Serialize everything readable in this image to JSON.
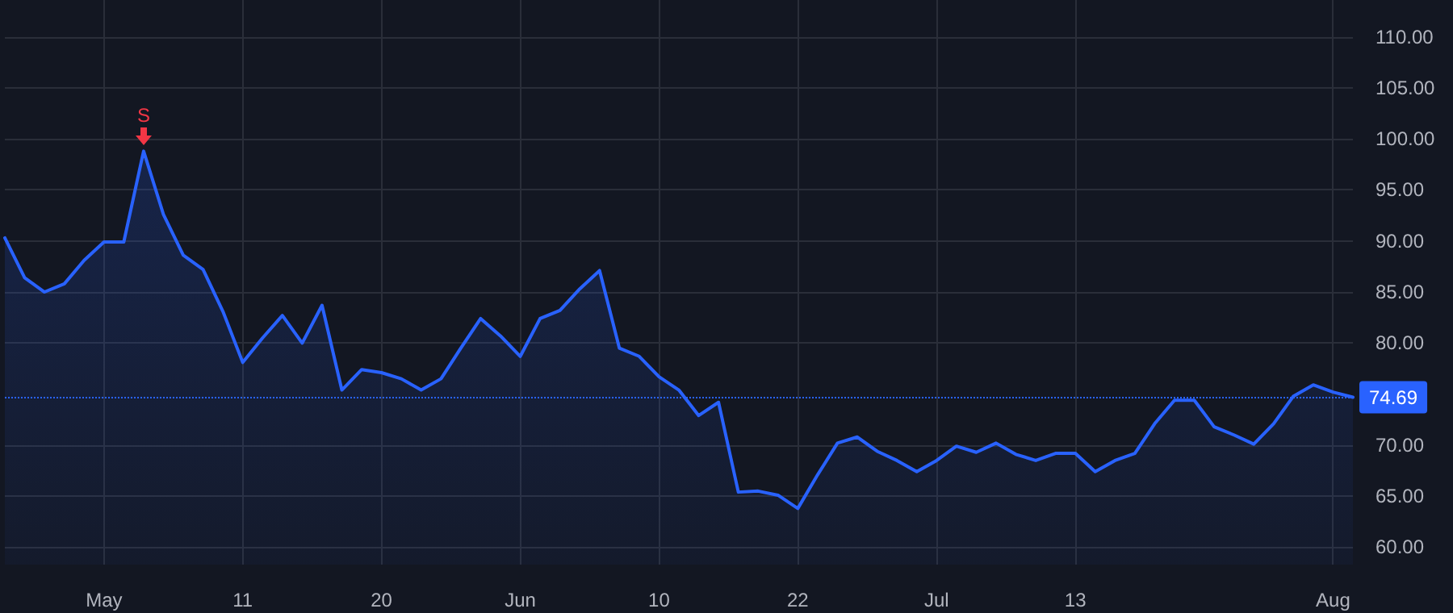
{
  "chart_data": {
    "type": "area",
    "categories": [
      null,
      null,
      null,
      null,
      null,
      "May",
      null,
      null,
      null,
      null,
      null,
      null,
      "11",
      null,
      null,
      null,
      null,
      null,
      null,
      "20",
      null,
      null,
      null,
      null,
      null,
      null,
      "Jun",
      null,
      null,
      null,
      null,
      null,
      null,
      "10",
      null,
      null,
      null,
      null,
      null,
      null,
      "22",
      null,
      null,
      null,
      null,
      null,
      null,
      "Jul",
      null,
      null,
      null,
      null,
      null,
      null,
      "13",
      null,
      null,
      null,
      null,
      null,
      null,
      null,
      null,
      null,
      null,
      null,
      null,
      "Aug",
      null
    ],
    "series": [
      {
        "color": "#2962ff",
        "values": [
          90.3,
          86.4,
          85.0,
          85.8,
          88.1,
          89.9,
          89.9,
          98.8,
          92.6,
          88.6,
          87.2,
          83.1,
          78.1,
          80.5,
          82.7,
          80.0,
          83.7,
          75.4,
          77.4,
          77.1,
          76.5,
          75.4,
          76.5,
          79.5,
          82.4,
          80.7,
          78.7,
          82.4,
          83.2,
          85.3,
          87.1,
          79.5,
          78.7,
          76.7,
          75.4,
          72.9,
          74.2,
          65.4,
          65.5,
          65.1,
          63.8,
          67.1,
          70.2,
          70.8,
          69.4,
          68.5,
          67.4,
          68.5,
          69.9,
          69.3,
          70.2,
          69.1,
          68.5,
          69.2,
          69.2,
          67.4,
          68.5,
          69.2,
          72.1,
          74.4,
          74.4,
          71.8,
          71.0,
          70.1,
          72.1,
          74.8,
          75.9,
          75.2,
          74.69
        ]
      }
    ],
    "ylim": [
      58.3,
      113.6
    ],
    "yticks": [
      {
        "value": 60,
        "label": "60.00"
      },
      {
        "value": 65,
        "label": "65.00"
      },
      {
        "value": 70,
        "label": "70.00"
      },
      {
        "value": 80,
        "label": "80.00"
      },
      {
        "value": 85,
        "label": "85.00"
      },
      {
        "value": 90,
        "label": "90.00"
      },
      {
        "value": 95,
        "label": "95.00"
      },
      {
        "value": 100,
        "label": "100.00"
      },
      {
        "value": 105,
        "label": "105.00"
      },
      {
        "value": 110,
        "label": "110.00"
      }
    ],
    "ref_lines": [
      {
        "axis": "y",
        "value": 74.69,
        "label": "74.69",
        "color": "#2962ff",
        "line_style": "dotted"
      }
    ],
    "annotations": [
      {
        "text": "S",
        "y": 98.8
      }
    ],
    "grid": true,
    "marker": "none",
    "line_style": "solid"
  }
}
